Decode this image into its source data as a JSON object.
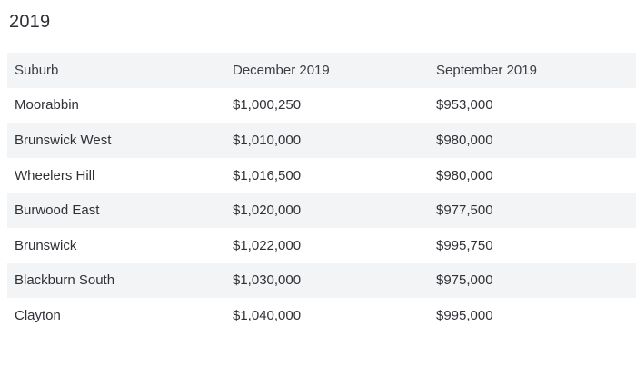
{
  "heading": "2019",
  "table": {
    "columns": [
      "Suburb",
      "December 2019",
      "September 2019"
    ],
    "rows": [
      [
        "Moorabbin",
        "$1,000,250",
        "$953,000"
      ],
      [
        "Brunswick West",
        "$1,010,000",
        "$980,000"
      ],
      [
        "Wheelers Hill",
        "$1,016,500",
        "$980,000"
      ],
      [
        "Burwood East",
        "$1,020,000",
        "$977,500"
      ],
      [
        "Brunswick",
        "$1,022,000",
        "$995,750"
      ],
      [
        "Blackburn South",
        "$1,030,000",
        "$975,000"
      ],
      [
        "Clayton",
        "$1,040,000",
        "$995,000"
      ]
    ]
  }
}
